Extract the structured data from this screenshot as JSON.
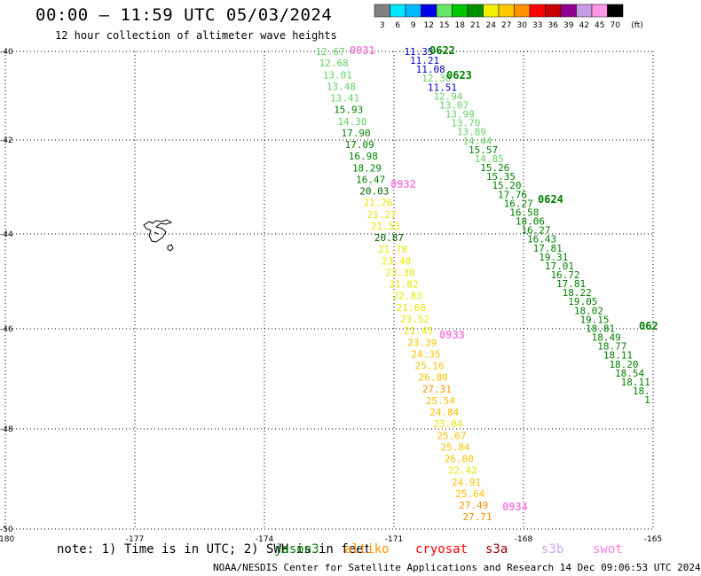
{
  "title": "00:00 – 11:59 UTC 05/03/2024",
  "subtitle": "12 hour collection of altimeter wave heights",
  "colorbar": {
    "unit": "(ft)",
    "ticks": [
      "3",
      "6",
      "9",
      "12",
      "15",
      "18",
      "21",
      "24",
      "27",
      "30",
      "33",
      "36",
      "39",
      "42",
      "45",
      "70"
    ],
    "colors": [
      "#808080",
      "#00e5ff",
      "#00b8ff",
      "#0000e8",
      "#66e866",
      "#00c800",
      "#009000",
      "#f0f000",
      "#ffc800",
      "#ff9000",
      "#ff0000",
      "#c80000",
      "#900090",
      "#c89be6",
      "#ff96e6",
      "#000000"
    ]
  },
  "axes": {
    "lon_labels": [
      "-180",
      "-177",
      "-174",
      "-171",
      "-168",
      "-165"
    ],
    "lat_labels": [
      "-40",
      "-42",
      "-44",
      "-46",
      "-48",
      "-50"
    ]
  },
  "track_labels": [
    {
      "text": "0622",
      "color": "#008000"
    },
    {
      "text": "0623",
      "color": "#008000"
    },
    {
      "text": "0624",
      "color": "#008000"
    },
    {
      "text": "062",
      "color": "#008000"
    },
    {
      "text": "0931",
      "color": "#ff80e0"
    },
    {
      "text": "0932",
      "color": "#ff80e0"
    },
    {
      "text": "0933",
      "color": "#ff80e0"
    },
    {
      "text": "0934",
      "color": "#ff80e0"
    }
  ],
  "tracks": [
    {
      "name": "track-a",
      "points": [
        {
          "v": "11.35",
          "c": "#0000c0"
        },
        {
          "v": "11.21",
          "c": "#0000c0"
        },
        {
          "v": "11.08",
          "c": "#0000c0"
        },
        {
          "v": "12.30",
          "c": "#66d066"
        },
        {
          "v": "11.51",
          "c": "#0000c0"
        },
        {
          "v": "12.94",
          "c": "#66d066"
        },
        {
          "v": "13.07",
          "c": "#66d066"
        },
        {
          "v": "13.99",
          "c": "#66d066"
        },
        {
          "v": "13.70",
          "c": "#66d066"
        },
        {
          "v": "13.89",
          "c": "#66d066"
        },
        {
          "v": "14.44",
          "c": "#66d066"
        },
        {
          "v": "15.57",
          "c": "#008000"
        },
        {
          "v": "14.85",
          "c": "#66d066"
        },
        {
          "v": "15.26",
          "c": "#008000"
        },
        {
          "v": "15.35",
          "c": "#008000"
        },
        {
          "v": "15.20",
          "c": "#008000"
        },
        {
          "v": "17.76",
          "c": "#008000"
        },
        {
          "v": "16.27",
          "c": "#008000"
        },
        {
          "v": "16.58",
          "c": "#008000"
        },
        {
          "v": "18.06",
          "c": "#008000"
        },
        {
          "v": "16.27",
          "c": "#008000"
        },
        {
          "v": "16.43",
          "c": "#008000"
        },
        {
          "v": "17.81",
          "c": "#008000"
        },
        {
          "v": "19.31",
          "c": "#008000"
        },
        {
          "v": "17.01",
          "c": "#008000"
        },
        {
          "v": "16.72",
          "c": "#008000"
        },
        {
          "v": "17.81",
          "c": "#008000"
        },
        {
          "v": "18.22",
          "c": "#008000"
        },
        {
          "v": "19.05",
          "c": "#008000"
        },
        {
          "v": "18.02",
          "c": "#008000"
        },
        {
          "v": "19.15",
          "c": "#008000"
        },
        {
          "v": "18.81",
          "c": "#008000"
        },
        {
          "v": "18.49",
          "c": "#008000"
        },
        {
          "v": "18.77",
          "c": "#008000"
        },
        {
          "v": "18.11",
          "c": "#008000"
        },
        {
          "v": "18.20",
          "c": "#008000"
        },
        {
          "v": "18.54",
          "c": "#008000"
        },
        {
          "v": "18.11",
          "c": "#008000"
        },
        {
          "v": "18.",
          "c": "#008000"
        },
        {
          "v": "1",
          "c": "#008000"
        }
      ]
    },
    {
      "name": "track-b",
      "points": [
        {
          "v": "12.67",
          "c": "#66d066"
        },
        {
          "v": "12.68",
          "c": "#66d066"
        },
        {
          "v": "13.01",
          "c": "#66d066"
        },
        {
          "v": "13.48",
          "c": "#66d066"
        },
        {
          "v": "13.41",
          "c": "#66d066"
        },
        {
          "v": "15.93",
          "c": "#008000"
        },
        {
          "v": "14.30",
          "c": "#66d066"
        },
        {
          "v": "17.90",
          "c": "#008000"
        },
        {
          "v": "17.09",
          "c": "#008000"
        },
        {
          "v": "16.98",
          "c": "#008000"
        },
        {
          "v": "18.29",
          "c": "#008000"
        },
        {
          "v": "16.47",
          "c": "#008000"
        },
        {
          "v": "20.03",
          "c": "#006000"
        },
        {
          "v": "21.26",
          "c": "#e8e800"
        },
        {
          "v": "21.27",
          "c": "#e8e800"
        },
        {
          "v": "21.53",
          "c": "#e8e800"
        },
        {
          "v": "20.87",
          "c": "#006000"
        },
        {
          "v": "21.78",
          "c": "#e8e800"
        },
        {
          "v": "23.40",
          "c": "#e8e800"
        },
        {
          "v": "23.38",
          "c": "#e8e800"
        },
        {
          "v": "21.82",
          "c": "#e8e800"
        },
        {
          "v": "22.83",
          "c": "#e8e800"
        },
        {
          "v": "21.68",
          "c": "#e8e800"
        },
        {
          "v": "23.52",
          "c": "#e8e800"
        },
        {
          "v": "21.45",
          "c": "#e8e800"
        },
        {
          "v": "23.39",
          "c": "#ffc000"
        },
        {
          "v": "24.35",
          "c": "#ffc000"
        },
        {
          "v": "25.16",
          "c": "#ffc000"
        },
        {
          "v": "26.80",
          "c": "#ffc000"
        },
        {
          "v": "27.31",
          "c": "#ff9000"
        },
        {
          "v": "25.54",
          "c": "#ffc000"
        },
        {
          "v": "24.84",
          "c": "#ffc000"
        },
        {
          "v": "23.04",
          "c": "#e8e800"
        },
        {
          "v": "25.67",
          "c": "#ffc000"
        },
        {
          "v": "25.84",
          "c": "#ffc000"
        },
        {
          "v": "26.80",
          "c": "#ffc000"
        },
        {
          "v": "22.42",
          "c": "#e8e800"
        },
        {
          "v": "24.91",
          "c": "#ffc000"
        },
        {
          "v": "25.64",
          "c": "#ffc000"
        },
        {
          "v": "27.49",
          "c": "#ff9000"
        },
        {
          "v": "27.71",
          "c": "#ff9000"
        }
      ]
    }
  ],
  "note": "note: 1) Time is in UTC; 2) SWH is in feet",
  "satellites": [
    {
      "name": "jason3",
      "color": "#008000"
    },
    {
      "name": "altiko",
      "color": "#ff9000"
    },
    {
      "name": "cryosat",
      "color": "#ff0000"
    },
    {
      "name": "s3a",
      "color": "#900000"
    },
    {
      "name": "s3b",
      "color": "#c0a8f0"
    },
    {
      "name": "swot",
      "color": "#ff80e0"
    }
  ],
  "credit": "NOAA/NESDIS Center for Satellite Applications and Research    14 Dec 09:06:53 UTC 2024"
}
